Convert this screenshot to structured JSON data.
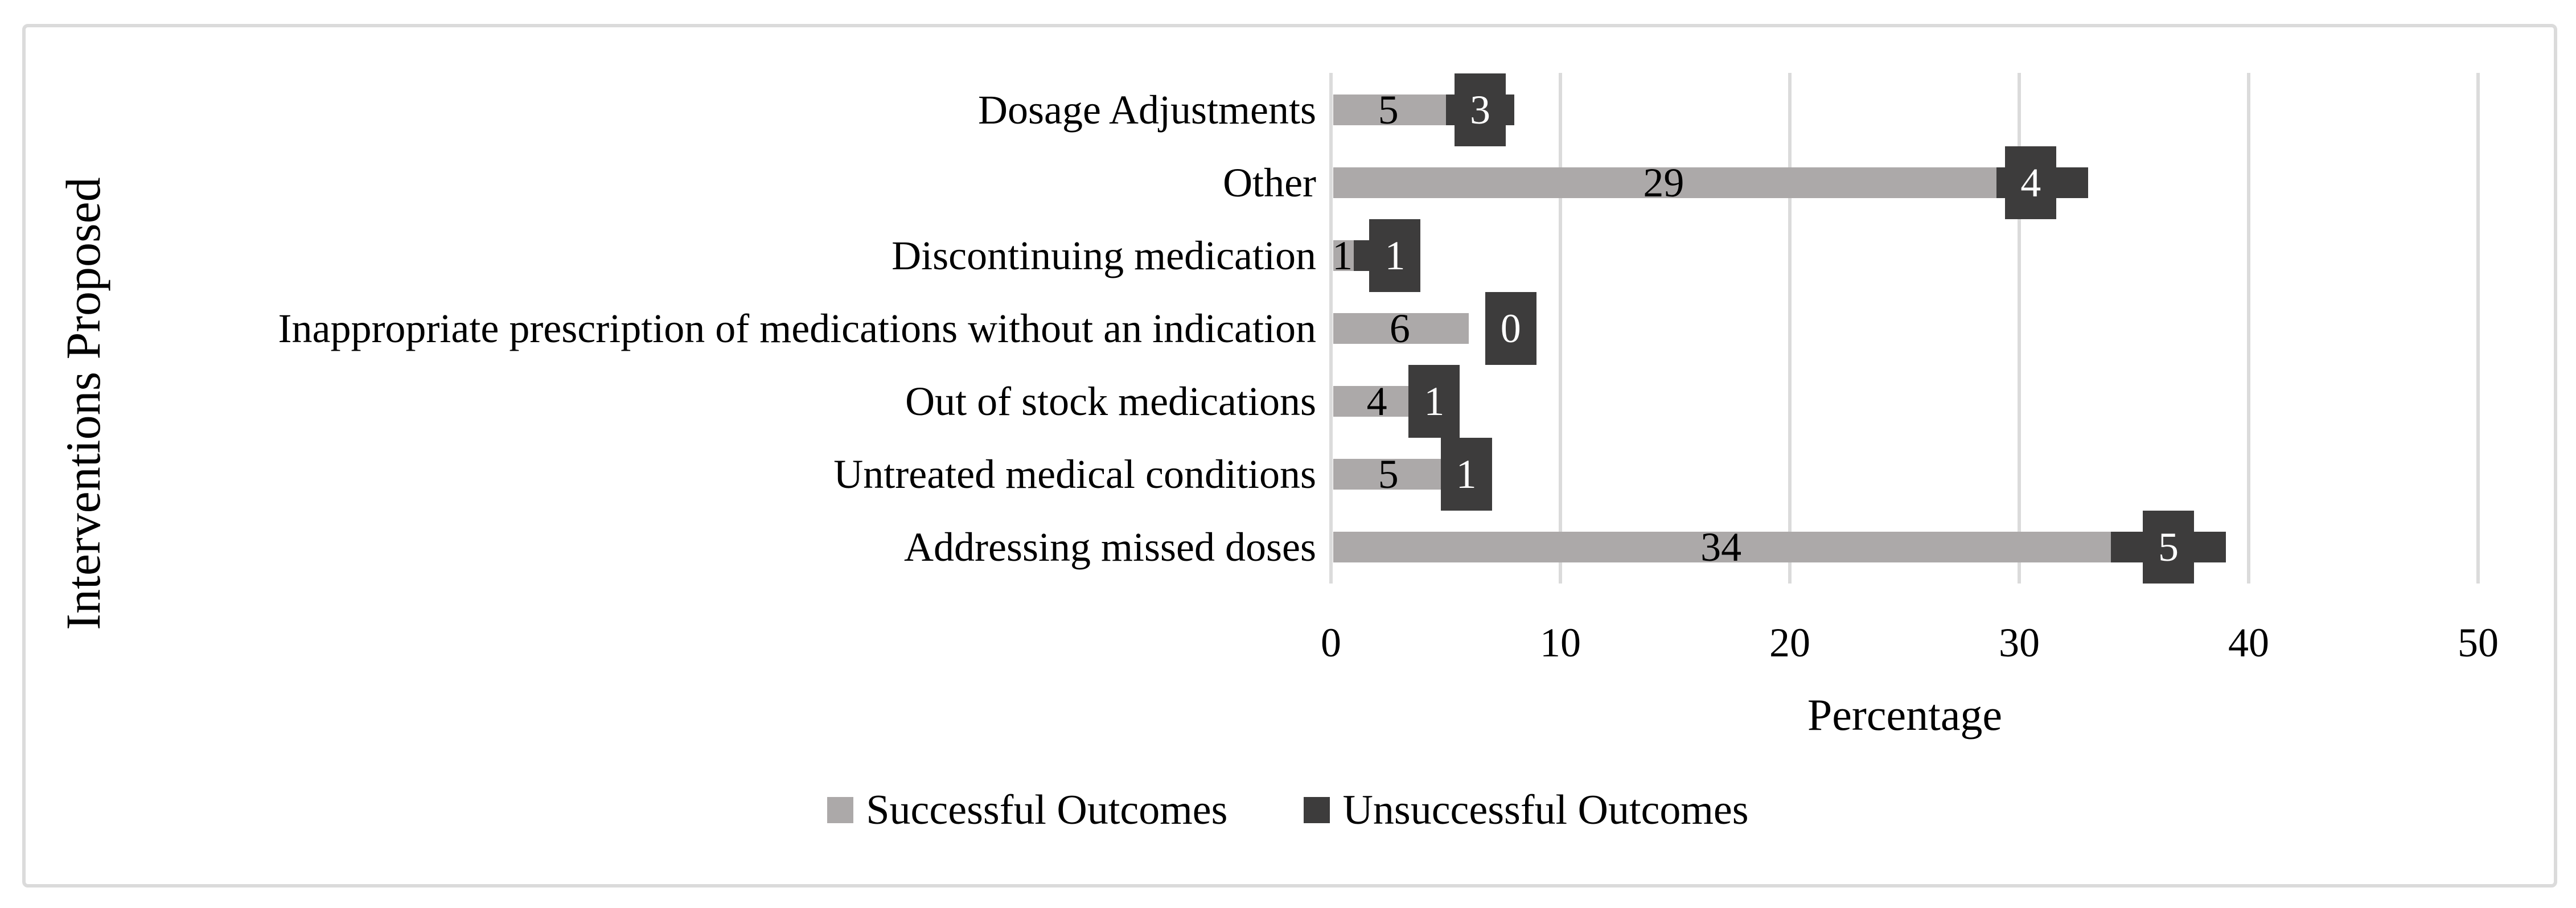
{
  "figure": {
    "x_axis_title": "Percentage",
    "y_axis_title": "Interventions Proposed"
  },
  "chart_data": {
    "type": "bar",
    "orientation": "horizontal",
    "stacked": true,
    "title": "",
    "xlabel": "Percentage",
    "ylabel": "Interventions Proposed",
    "categories": [
      "Dosage Adjustments",
      "Other",
      "Discontinuing medication",
      "Inappropriate prescription of medications without an indication",
      "Out of stock medications",
      "Untreated medical conditions",
      "Addressing missed doses"
    ],
    "series": [
      {
        "name": "Successful Outcomes",
        "color": "#ACA9A9",
        "label_color": "#000000",
        "values": [
          5,
          29,
          1,
          6,
          4,
          5,
          34
        ]
      },
      {
        "name": "Unsuccessful Outcomes",
        "color": "#3D3C3C",
        "label_color": "#FFFFFF",
        "values": [
          3,
          4,
          1,
          0,
          1,
          1,
          5
        ]
      }
    ],
    "x_ticks": [
      0,
      10,
      20,
      30,
      40,
      50
    ],
    "xlim": [
      0,
      50
    ],
    "grid": "vertical",
    "gridline_color": "#DBDBDB",
    "legend_position": "bottom",
    "data_labels": true
  }
}
